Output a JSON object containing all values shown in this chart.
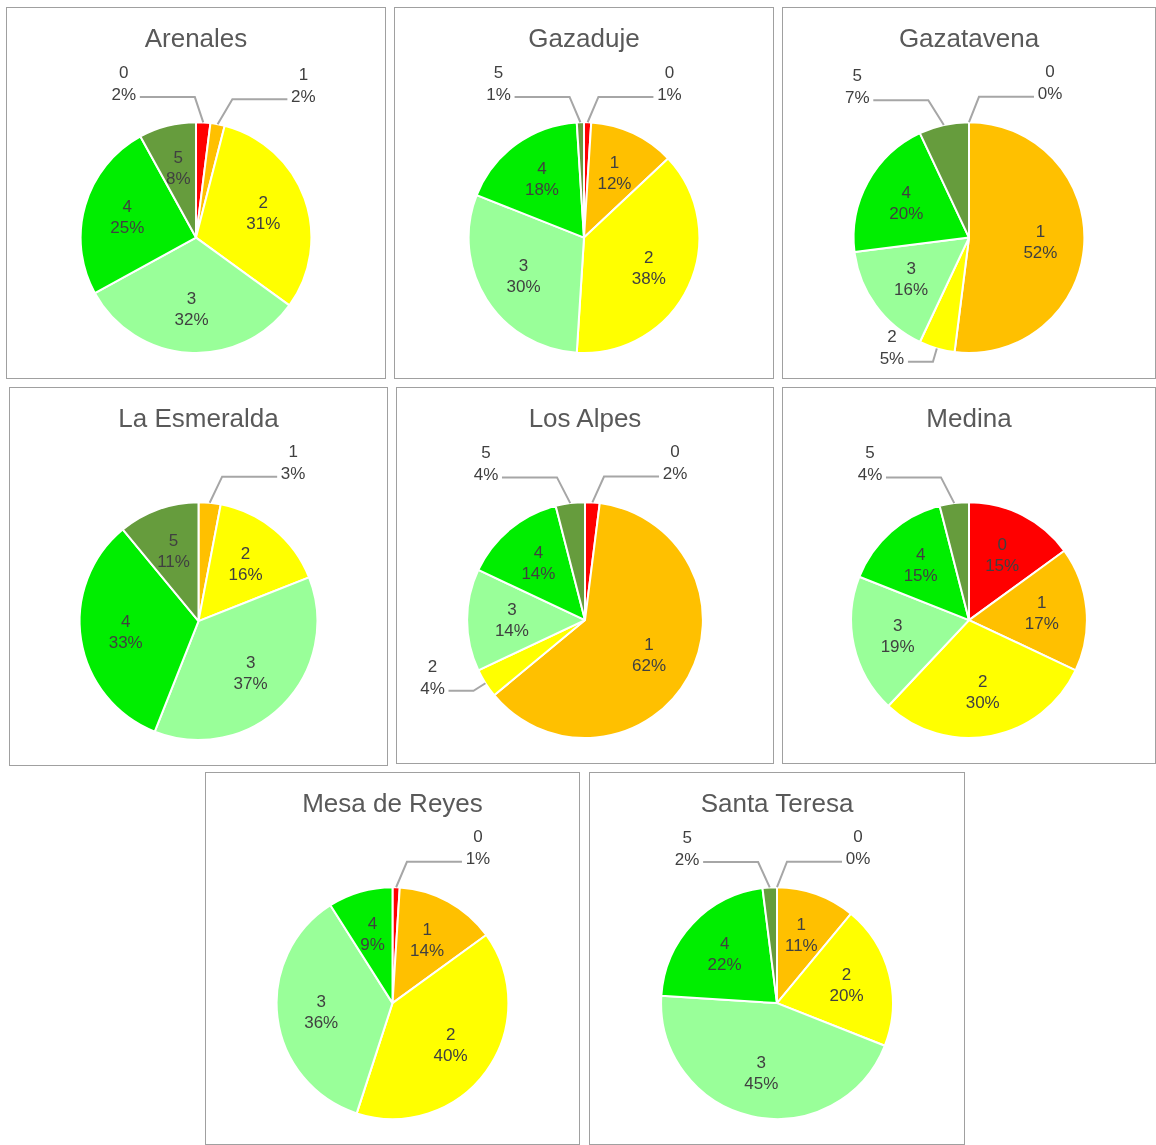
{
  "chart_data": [
    {
      "type": "pie",
      "title": "Arenales",
      "categories": [
        "0",
        "1",
        "2",
        "3",
        "4",
        "5"
      ],
      "values": [
        2,
        2,
        31,
        32,
        25,
        8
      ],
      "value_labels": [
        "2%",
        "2%",
        "31%",
        "32%",
        "25%",
        "8%"
      ],
      "colors": [
        "#ff0000",
        "#ffc000",
        "#ffff00",
        "#99ff99",
        "#00ee00",
        "#669c3d"
      ]
    },
    {
      "type": "pie",
      "title": "Gazaduje",
      "categories": [
        "0",
        "1",
        "2",
        "3",
        "4",
        "5"
      ],
      "values": [
        1,
        12,
        38,
        30,
        18,
        1
      ],
      "value_labels": [
        "1%",
        "12%",
        "38%",
        "30%",
        "18%",
        "1%"
      ],
      "colors": [
        "#ff0000",
        "#ffc000",
        "#ffff00",
        "#99ff99",
        "#00ee00",
        "#669c3d"
      ]
    },
    {
      "type": "pie",
      "title": "Gazatavena",
      "categories": [
        "0",
        "1",
        "2",
        "3",
        "4",
        "5"
      ],
      "values": [
        0,
        52,
        5,
        16,
        20,
        7
      ],
      "value_labels": [
        "0%",
        "52%",
        "5%",
        "16%",
        "20%",
        "7%"
      ],
      "colors": [
        "#ff0000",
        "#ffc000",
        "#ffff00",
        "#99ff99",
        "#00ee00",
        "#669c3d"
      ]
    },
    {
      "type": "pie",
      "title": "La Esmeralda",
      "categories": [
        "1",
        "2",
        "3",
        "4",
        "5"
      ],
      "values": [
        3,
        16,
        37,
        33,
        11
      ],
      "value_labels": [
        "3%",
        "16%",
        "37%",
        "33%",
        "11%"
      ],
      "colors": [
        "#ffc000",
        "#ffff00",
        "#99ff99",
        "#00ee00",
        "#669c3d"
      ]
    },
    {
      "type": "pie",
      "title": "Los Alpes",
      "categories": [
        "0",
        "1",
        "2",
        "3",
        "4",
        "5"
      ],
      "values": [
        2,
        62,
        4,
        14,
        14,
        4
      ],
      "value_labels": [
        "2%",
        "62%",
        "4%",
        "14%",
        "14%",
        "4%"
      ],
      "colors": [
        "#ff0000",
        "#ffc000",
        "#ffff00",
        "#99ff99",
        "#00ee00",
        "#669c3d"
      ]
    },
    {
      "type": "pie",
      "title": "Medina",
      "categories": [
        "0",
        "1",
        "2",
        "3",
        "4",
        "5"
      ],
      "values": [
        15,
        17,
        30,
        19,
        15,
        4
      ],
      "value_labels": [
        "15%",
        "17%",
        "30%",
        "19%",
        "15%",
        "4%"
      ],
      "colors": [
        "#ff0000",
        "#ffc000",
        "#ffff00",
        "#99ff99",
        "#00ee00",
        "#669c3d"
      ]
    },
    {
      "type": "pie",
      "title": "Mesa de Reyes",
      "categories": [
        "0",
        "1",
        "2",
        "3",
        "4"
      ],
      "values": [
        1,
        14,
        40,
        36,
        9
      ],
      "value_labels": [
        "1%",
        "14%",
        "40%",
        "36%",
        "9%"
      ],
      "colors": [
        "#ff0000",
        "#ffc000",
        "#ffff00",
        "#99ff99",
        "#00ee00"
      ]
    },
    {
      "type": "pie",
      "title": "Santa Teresa",
      "categories": [
        "0",
        "1",
        "2",
        "3",
        "4",
        "5"
      ],
      "values": [
        0,
        11,
        20,
        45,
        22,
        2
      ],
      "value_labels": [
        "0%",
        "11%",
        "20%",
        "45%",
        "22%",
        "2%"
      ],
      "colors": [
        "#ff0000",
        "#ffc000",
        "#ffff00",
        "#99ff99",
        "#00ee00",
        "#669c3d"
      ]
    }
  ]
}
